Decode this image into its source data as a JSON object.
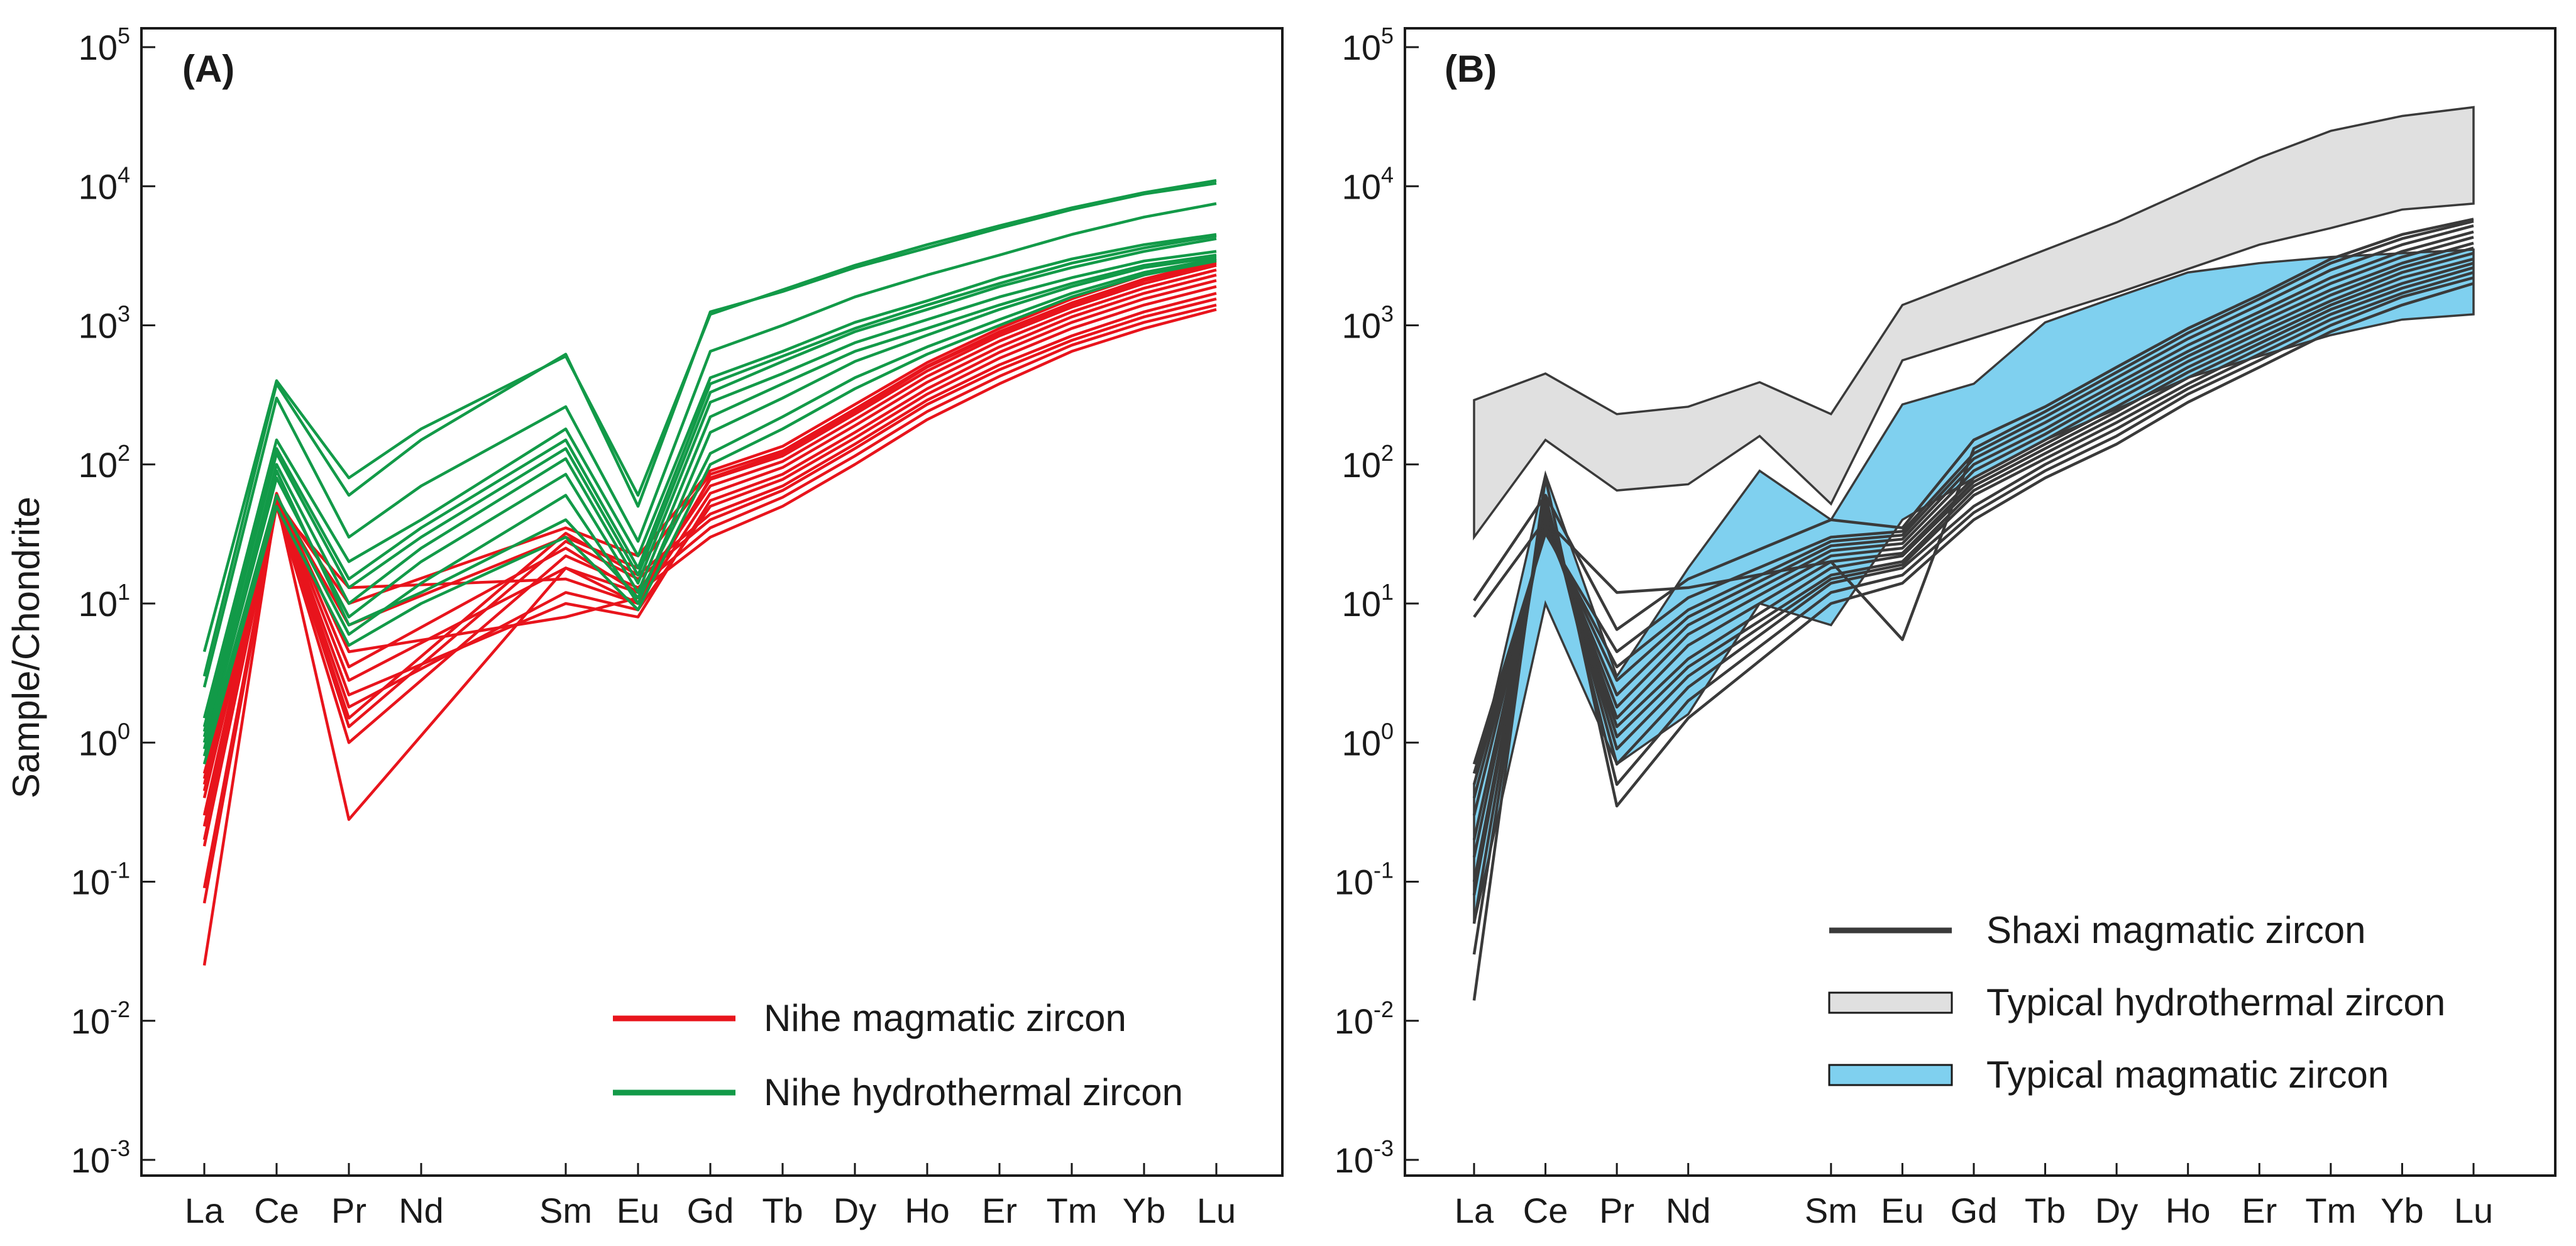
{
  "figure": {
    "ylabel": "Sample/Chondrite"
  },
  "chart_data": [
    {
      "type": "line",
      "panel_label": "(A)",
      "ylabel": "Sample/Chondrite",
      "yscale": "log",
      "ylim": [
        0.001,
        100000
      ],
      "ytick_exponents": [
        "-3",
        "-2",
        "-1",
        "0",
        "1",
        "2",
        "3",
        "4",
        "5"
      ],
      "categories": [
        "La",
        "Ce",
        "Pr",
        "Nd",
        "Sm",
        "Eu",
        "Gd",
        "Tb",
        "Dy",
        "Ho",
        "Er",
        "Tm",
        "Yb",
        "Lu"
      ],
      "category_positions": [
        0,
        1,
        2,
        3,
        5,
        6,
        7,
        8,
        9,
        10,
        11,
        12,
        13,
        14
      ],
      "legend": {
        "position": "bottom-right",
        "entries": [
          {
            "label": "Nihe magmatic zircon",
            "color": "#e8141c",
            "type": "line"
          },
          {
            "label": "Nihe hydrothermal zircon",
            "color": "#129a48",
            "type": "line"
          }
        ]
      },
      "groups": [
        {
          "name": "Nihe magmatic zircon",
          "color": "#e8141c",
          "series": [
            [
              0.025,
              55,
              0.28,
              null,
              18,
              12,
              30,
              50,
              100,
              210,
              380,
              650,
              950,
              1300
            ],
            [
              0.07,
              50,
              1.0,
              null,
              22,
              13,
              35,
              58,
              115,
              240,
              430,
              720,
              1050,
              1400
            ],
            [
              0.09,
              52,
              1.3,
              null,
              28,
              15,
              40,
              65,
              130,
              270,
              480,
              780,
              1150,
              1550
            ],
            [
              0.18,
              54,
              1.5,
              null,
              32,
              16,
              44,
              70,
              140,
              290,
              520,
              840,
              1250,
              1700
            ],
            [
              0.2,
              56,
              1.8,
              null,
              12,
              9,
              50,
              78,
              155,
              320,
              580,
              950,
              1400,
              1900
            ],
            [
              0.25,
              58,
              2.2,
              null,
              10,
              8,
              55,
              85,
              170,
              350,
              640,
              1050,
              1550,
              2100
            ],
            [
              0.3,
              60,
              2.8,
              null,
              18,
              10,
              62,
              95,
              190,
              390,
              700,
              1150,
              1700,
              2300
            ],
            [
              0.4,
              62,
              3.5,
              null,
              25,
              12,
              70,
              105,
              210,
              430,
              770,
              1250,
              1850,
              2500
            ],
            [
              0.45,
              60,
              4.5,
              null,
              8,
              11,
              78,
              115,
              230,
              470,
              840,
              1350,
              2000,
              2700
            ],
            [
              0.5,
              58,
              7.0,
              null,
              30,
              18,
              85,
              125,
              250,
              510,
              900,
              1450,
              2150,
              2900
            ],
            [
              0.55,
              56,
              10.0,
              null,
              35,
              22,
              90,
              135,
              270,
              540,
              950,
              1550,
              2300,
              3000
            ],
            [
              0.6,
              50,
              13.0,
              null,
              15,
              10,
              80,
              120,
              240,
              500,
              880,
              1400,
              2100,
              2800
            ]
          ]
        },
        {
          "name": "Nihe hydrothermal zircon",
          "color": "#129a48",
          "series": [
            [
              4.5,
              400,
              80,
              180,
              600,
              60,
              1200,
              1800,
              2700,
              3800,
              5200,
              7000,
              9000,
              11000
            ],
            [
              3.0,
              380,
              60,
              150,
              620,
              50,
              1250,
              1750,
              2600,
              3600,
              5000,
              6800,
              8800,
              10500
            ],
            [
              2.5,
              300,
              30,
              70,
              260,
              28,
              650,
              1000,
              1600,
              2300,
              3200,
              4500,
              6000,
              7500
            ],
            [
              1.5,
              150,
              20,
              40,
              180,
              22,
              420,
              650,
              1050,
              1500,
              2200,
              3000,
              3800,
              4500
            ],
            [
              1.3,
              130,
              15,
              35,
              150,
              18,
              380,
              600,
              950,
              1400,
              2000,
              2800,
              3600,
              4400
            ],
            [
              1.2,
              120,
              13,
              30,
              130,
              16,
              330,
              550,
              900,
              1300,
              1900,
              2600,
              3400,
              4200
            ],
            [
              1.0,
              100,
              10,
              25,
              110,
              14,
              280,
              450,
              750,
              1100,
              1600,
              2200,
              2900,
              3400
            ],
            [
              0.9,
              80,
              8,
              20,
              85,
              12,
              220,
              380,
              650,
              950,
              1400,
              2000,
              2700,
              3200
            ],
            [
              0.8,
              60,
              6,
              14,
              60,
              10,
              170,
              300,
              550,
              850,
              1300,
              1900,
              2600,
              3100
            ],
            [
              1.1,
              90,
              7,
              12,
              40,
              11,
              120,
              220,
              420,
              700,
              1100,
              1700,
              2400,
              3000
            ],
            [
              0.7,
              50,
              5,
              10,
              30,
              9,
              100,
              180,
              350,
              620,
              1000,
              1600,
              2300,
              2900
            ]
          ]
        }
      ]
    },
    {
      "type": "line",
      "panel_label": "(B)",
      "yscale": "log",
      "ylim": [
        0.001,
        100000
      ],
      "ytick_exponents": [
        "-3",
        "-2",
        "-1",
        "0",
        "1",
        "2",
        "3",
        "4",
        "5"
      ],
      "categories": [
        "La",
        "Ce",
        "Pr",
        "Nd",
        "Sm",
        "Eu",
        "Gd",
        "Tb",
        "Dy",
        "Ho",
        "Er",
        "Tm",
        "Yb",
        "Lu"
      ],
      "category_positions": [
        0,
        1,
        2,
        3,
        5,
        6,
        7,
        8,
        9,
        10,
        11,
        12,
        13,
        14
      ],
      "legend": {
        "position": "bottom-right",
        "entries": [
          {
            "label": "Shaxi magmatic zircon",
            "color": "#3a3a3a",
            "type": "line"
          },
          {
            "label": "Typical hydrothermal zircon",
            "color": "#e0e0e0",
            "type": "band"
          },
          {
            "label": "Typical magmatic zircon",
            "color": "#7fd0ef",
            "type": "band"
          }
        ]
      },
      "bands": [
        {
          "name": "Typical hydrothermal zircon",
          "color": "#e0e0e0",
          "upper": [
            [
              0,
              290
            ],
            [
              1,
              450
            ],
            [
              2,
              230
            ],
            [
              3,
              260
            ],
            [
              4,
              390
            ],
            [
              5,
              230
            ],
            [
              6,
              1400
            ],
            [
              9,
              5500
            ],
            [
              11,
              16000
            ],
            [
              12,
              25000
            ],
            [
              13,
              32000
            ],
            [
              14,
              37000
            ]
          ],
          "lower": [
            [
              0,
              30
            ],
            [
              1,
              150
            ],
            [
              2,
              65
            ],
            [
              3,
              72
            ],
            [
              4,
              160
            ],
            [
              5,
              52
            ],
            [
              6,
              560
            ],
            [
              9,
              1700
            ],
            [
              11,
              3800
            ],
            [
              12,
              5000
            ],
            [
              13,
              6800
            ],
            [
              14,
              7500
            ]
          ]
        },
        {
          "name": "Typical magmatic zircon",
          "color": "#7fd0ef",
          "upper": [
            [
              0,
              0.5
            ],
            [
              1,
              85
            ],
            [
              2,
              3
            ],
            [
              3,
              18
            ],
            [
              4,
              90
            ],
            [
              5,
              40
            ],
            [
              6,
              270
            ],
            [
              7,
              380
            ],
            [
              8,
              1050
            ],
            [
              9,
              1600
            ],
            [
              10,
              2400
            ],
            [
              11,
              2800
            ],
            [
              12,
              3100
            ],
            [
              13,
              3300
            ],
            [
              14,
              3500
            ]
          ],
          "lower": [
            [
              0,
              0.05
            ],
            [
              1,
              10
            ],
            [
              2,
              0.7
            ],
            [
              3,
              1.6
            ],
            [
              4,
              10
            ],
            [
              5,
              7
            ],
            [
              6,
              40
            ],
            [
              7,
              80
            ],
            [
              8,
              150
            ],
            [
              9,
              250
            ],
            [
              10,
              420
            ],
            [
              11,
              600
            ],
            [
              12,
              850
            ],
            [
              13,
              1100
            ],
            [
              14,
              1200
            ]
          ]
        }
      ],
      "groups": [
        {
          "name": "Shaxi magmatic zircon",
          "color": "#3a3a3a",
          "series": [
            [
              0.014,
              80,
              0.35,
              1.5,
              10,
              14,
              40,
              80,
              140,
              280,
              500,
              900,
              1400,
              2000
            ],
            [
              0.03,
              60,
              0.5,
              2.0,
              12,
              16,
              45,
              90,
              160,
              320,
              560,
              1000,
              1600,
              2200
            ],
            [
              0.05,
              55,
              0.7,
              2.5,
              14,
              18,
              50,
              100,
              180,
              350,
              620,
              1100,
              1700,
              2400
            ],
            [
              0.08,
              50,
              0.9,
              3.0,
              15,
              19,
              60,
              110,
              200,
              380,
              680,
              1200,
              1850,
              2600
            ],
            [
              0.1,
              45,
              1.1,
              3.5,
              16,
              20,
              65,
              120,
              220,
              420,
              740,
              1300,
              2000,
              2800
            ],
            [
              0.15,
              42,
              1.3,
              4.0,
              18,
              22,
              70,
              130,
              240,
              460,
              800,
              1400,
              2200,
              3000
            ],
            [
              0.2,
              40,
              1.5,
              5.0,
              20,
              23,
              75,
              140,
              260,
              500,
              880,
              1500,
              2400,
              3300
            ],
            [
              0.3,
              38,
              1.8,
              6.0,
              22,
              25,
              80,
              150,
              290,
              550,
              950,
              1650,
              2600,
              3600
            ],
            [
              0.4,
              36,
              2.2,
              7.0,
              24,
              27,
              90,
              165,
              320,
              600,
              1050,
              1800,
              2800,
              3900
            ],
            [
              0.5,
              35,
              2.8,
              8.0,
              26,
              29,
              100,
              180,
              350,
              650,
              1150,
              2000,
              3100,
              4300
            ],
            [
              0.6,
              33,
              3.5,
              9.0,
              28,
              31,
              110,
              200,
              380,
              720,
              1250,
              2200,
              3400,
              4700
            ],
            [
              0.7,
              32,
              4.5,
              11,
              30,
              33,
              120,
              220,
              420,
              800,
              1400,
              2500,
              3800,
              5200
            ],
            [
              8,
              40,
              12,
              13,
              20,
              5.5,
              130,
              240,
              460,
              880,
              1550,
              2800,
              4200,
              5600
            ],
            [
              10.5,
              60,
              6.5,
              15,
              40,
              35,
              150,
              260,
              500,
              950,
              1650,
              3000,
              4500,
              5800
            ]
          ]
        }
      ]
    }
  ]
}
